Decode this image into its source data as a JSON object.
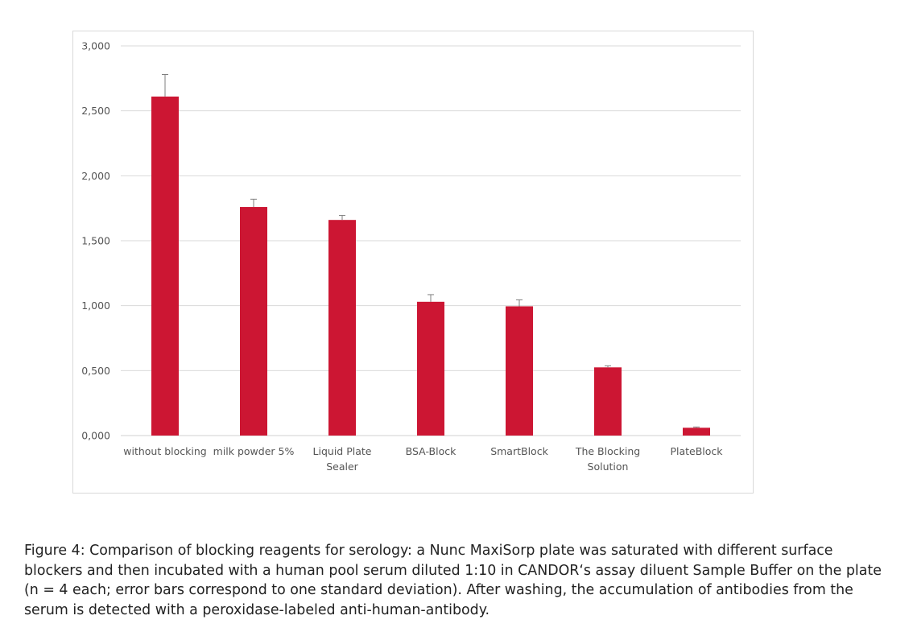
{
  "chart_data": {
    "type": "bar",
    "title": "",
    "xlabel": "",
    "ylabel": "",
    "ylim": [
      0,
      3
    ],
    "yticks": [
      "0,000",
      "0,500",
      "1,000",
      "1,500",
      "2,000",
      "2,500",
      "3,000"
    ],
    "ytick_values": [
      0,
      0.5,
      1.0,
      1.5,
      2.0,
      2.5,
      3.0
    ],
    "grid": true,
    "bar_color": "#CC1633",
    "errorbar_color": "#7f7f7f",
    "categories": [
      "without blocking",
      "milk powder 5%",
      "Liquid Plate Sealer",
      "BSA-Block",
      "SmartBlock",
      "The Blocking Solution",
      "PlateBlock"
    ],
    "category_lines": [
      [
        "without blocking"
      ],
      [
        "milk powder 5%"
      ],
      [
        "Liquid Plate",
        "Sealer"
      ],
      [
        "BSA-Block"
      ],
      [
        "SmartBlock"
      ],
      [
        "The Blocking",
        "Solution"
      ],
      [
        "PlateBlock"
      ]
    ],
    "values": [
      2.61,
      1.76,
      1.66,
      1.03,
      0.995,
      0.525,
      0.06
    ],
    "errors": [
      0.17,
      0.06,
      0.035,
      0.055,
      0.05,
      0.012,
      0.006
    ]
  },
  "caption_lines": [
    "Figure 4: Comparison of blocking reagents for serology: a Nunc MaxiSorp plate was saturated with different surface",
    "blockers and then incubated with a human pool serum diluted 1:10 in CANDOR‘s assay diluent Sample Buffer on the plate",
    "(n = 4 each; error bars correspond to one standard deviation). After washing, the accumulation of antibodies from the",
    "serum is detected with a peroxidase-labeled anti-human-antibody."
  ]
}
